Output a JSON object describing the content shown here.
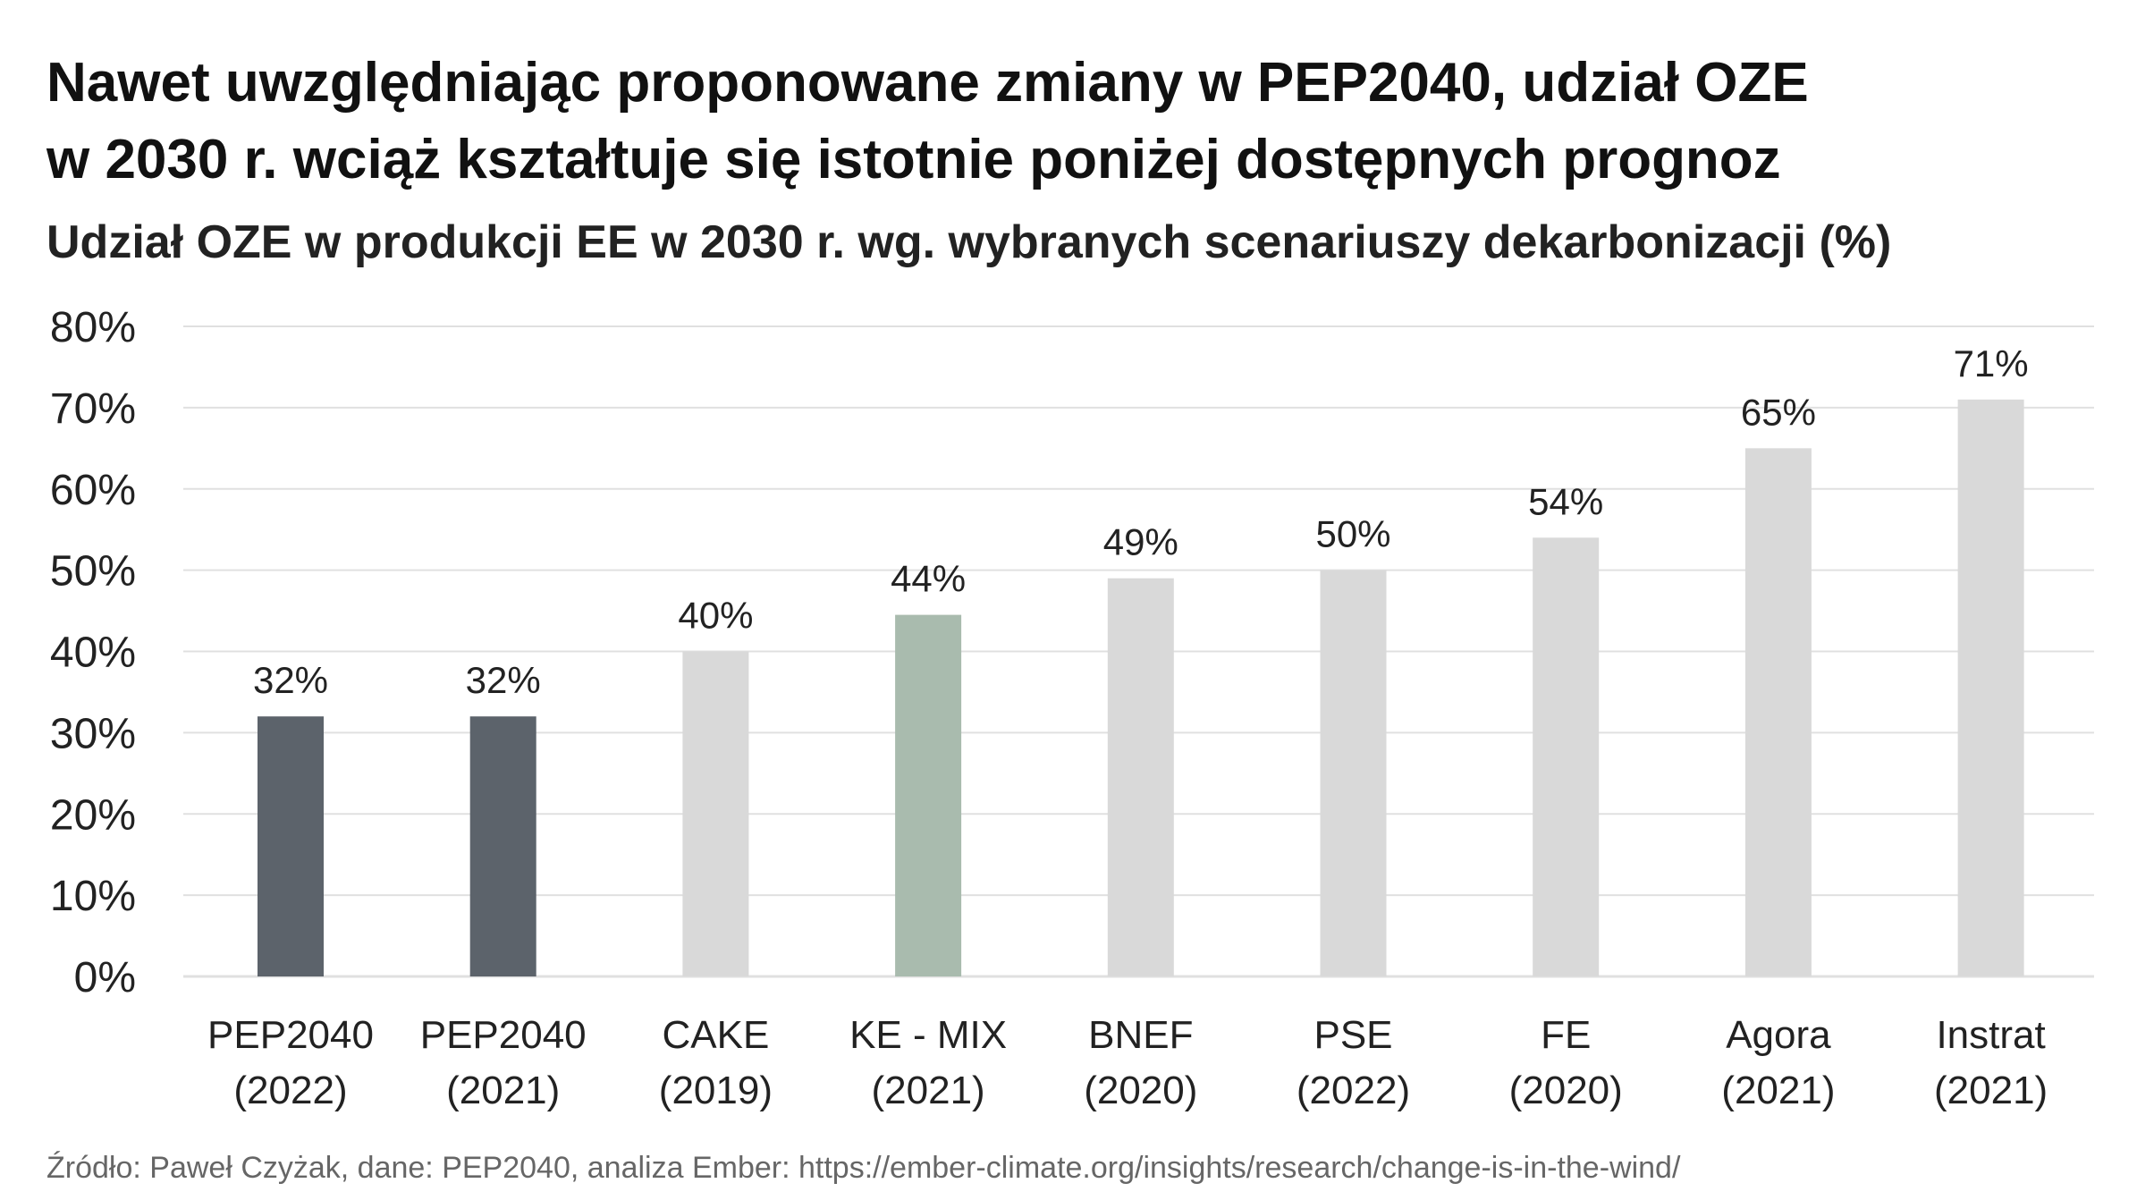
{
  "title_line1": "Nawet uwzględniając proponowane zmiany w PEP2040, udział OZE",
  "title_line2": "w 2030 r. wciąż kształtuje się istotnie poniżej dostępnych prognoz",
  "subtitle": "Udział OZE w produkcji EE w 2030 r. wg. wybranych scenariuszy dekarbonizacji (%)",
  "source": "Źródło: Paweł Czyżak, dane: PEP2040, analiza Ember: https://ember-climate.org/insights/research/change-is-in-the-wind/",
  "colors": {
    "highlight_dark": "#5c636b",
    "highlight_green": "#a9bbae",
    "default_bar": "#d9d9d9",
    "grid": "#e0e0e0",
    "axis_text": "#222222"
  },
  "chart_data": {
    "type": "bar",
    "title": "Udział OZE w produkcji EE w 2030 r. wg. wybranych scenariuszy dekarbonizacji (%)",
    "xlabel": "",
    "ylabel": "",
    "ylim": [
      0,
      80
    ],
    "yticks": [
      0,
      10,
      20,
      30,
      40,
      50,
      60,
      70,
      80
    ],
    "ytick_labels": [
      "0%",
      "10%",
      "20%",
      "30%",
      "40%",
      "50%",
      "60%",
      "70%",
      "80%"
    ],
    "grid": true,
    "categories": [
      [
        "PEP2040",
        "(2022)"
      ],
      [
        "PEP2040",
        "(2021)"
      ],
      [
        "CAKE",
        "(2019)"
      ],
      [
        "KE - MIX",
        "(2021)"
      ],
      [
        "BNEF",
        "(2020)"
      ],
      [
        "PSE",
        "(2022)"
      ],
      [
        "FE",
        "(2020)"
      ],
      [
        "Agora",
        "(2021)"
      ],
      [
        "Instrat",
        "(2021)"
      ]
    ],
    "values": [
      32,
      32,
      40,
      44.5,
      49,
      50,
      54,
      65,
      71
    ],
    "data_labels": [
      "32%",
      "32%",
      "40%",
      "44%",
      "49%",
      "50%",
      "54%",
      "65%",
      "71%"
    ],
    "bar_colors": [
      "#5c636b",
      "#5c636b",
      "#d9d9d9",
      "#a9bbae",
      "#d9d9d9",
      "#d9d9d9",
      "#d9d9d9",
      "#d9d9d9",
      "#d9d9d9"
    ]
  }
}
